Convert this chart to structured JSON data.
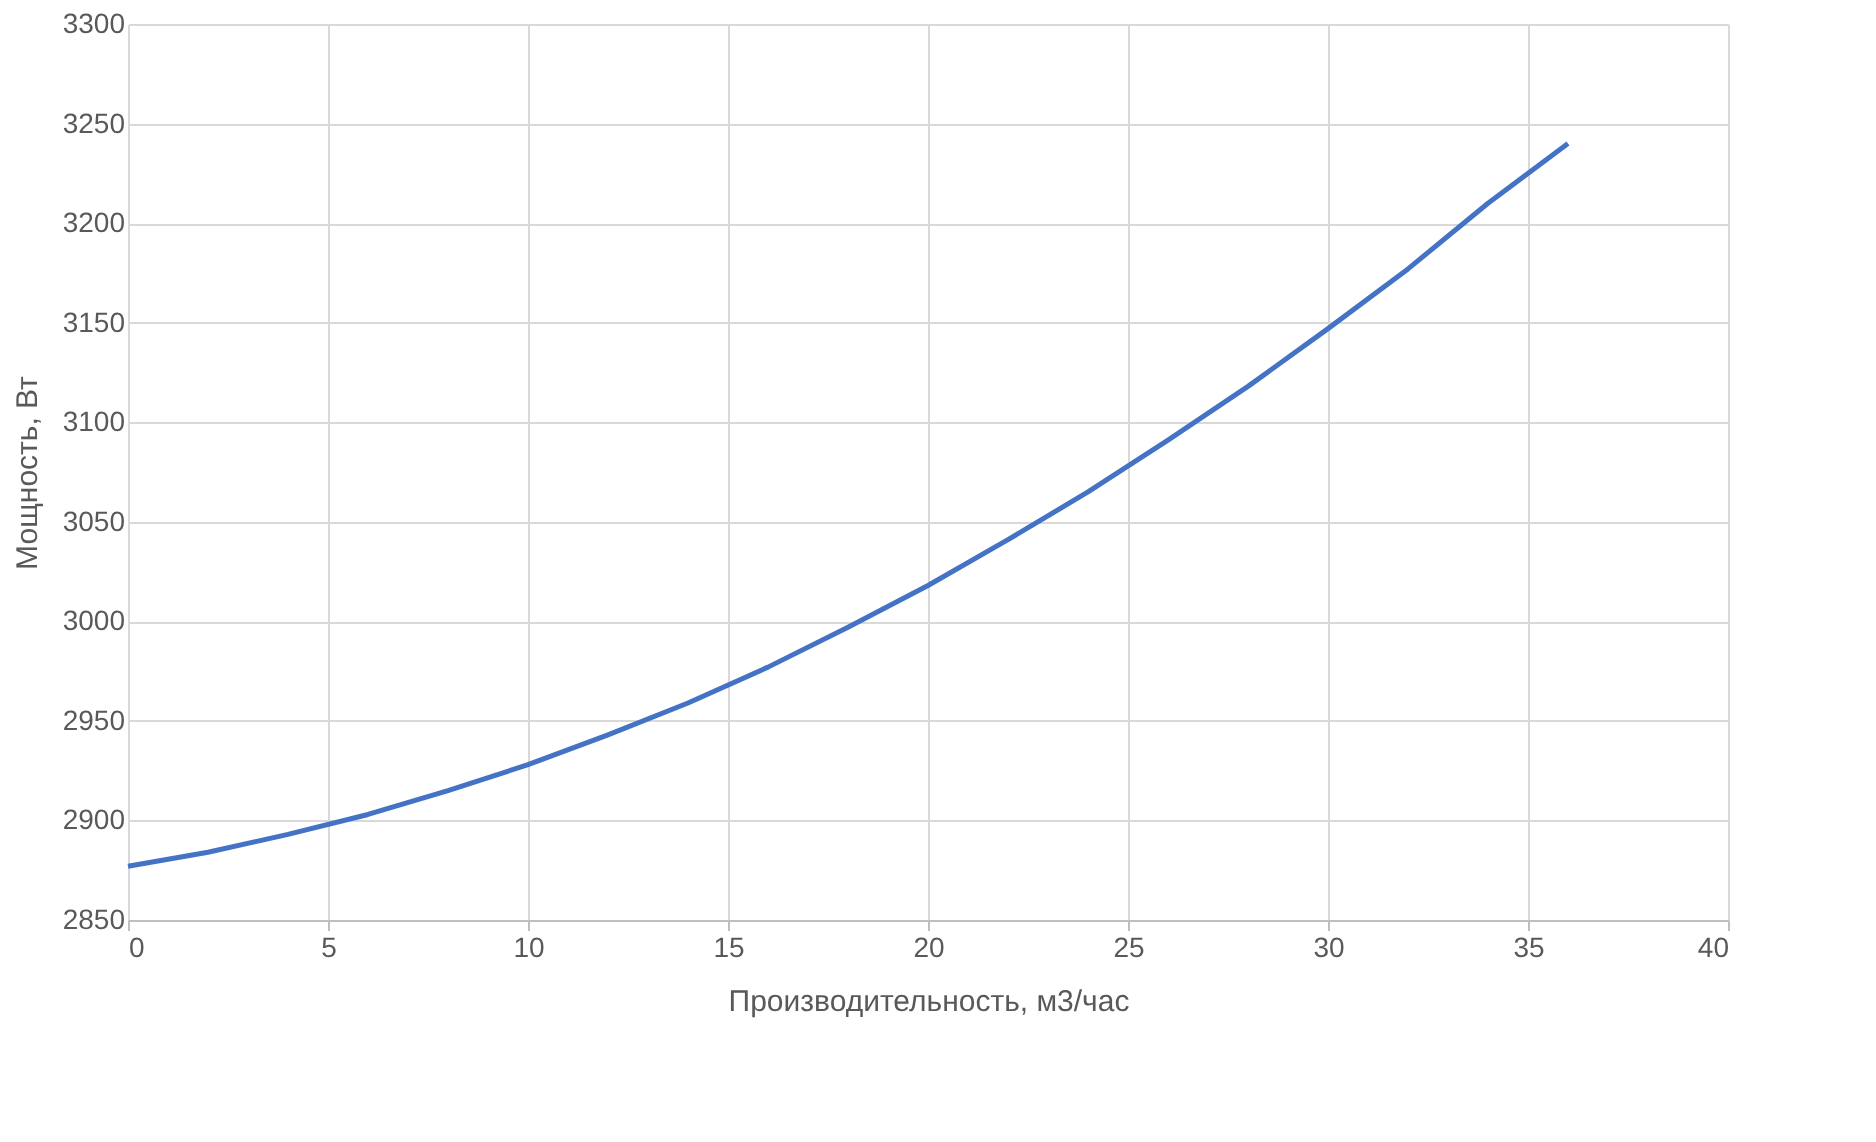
{
  "chart_data": {
    "type": "line",
    "xlabel": "Производительность, м3/час",
    "ylabel": "Мощность, Вт",
    "series": [
      {
        "color": "#4472c4",
        "x": [
          0,
          2,
          4,
          6,
          8,
          10,
          12,
          14,
          16,
          18,
          20,
          22,
          24,
          26,
          28,
          30,
          32,
          34,
          36
        ],
        "values": [
          2877,
          2884,
          2893,
          2903,
          2915,
          2928,
          2943,
          2959,
          2977,
          2997,
          3018,
          3041,
          3065,
          3091,
          3118,
          3147,
          3177,
          3210,
          3240
        ]
      }
    ],
    "xlim": [
      0,
      40
    ],
    "xticks": [
      0,
      5,
      10,
      15,
      20,
      25,
      30,
      35,
      40
    ],
    "ylim": [
      2850,
      3300
    ],
    "yticks": [
      2850,
      2900,
      2950,
      3000,
      3050,
      3100,
      3150,
      3200,
      3250,
      3300
    ],
    "grid": true,
    "marker": "none",
    "line_style": "solid"
  }
}
